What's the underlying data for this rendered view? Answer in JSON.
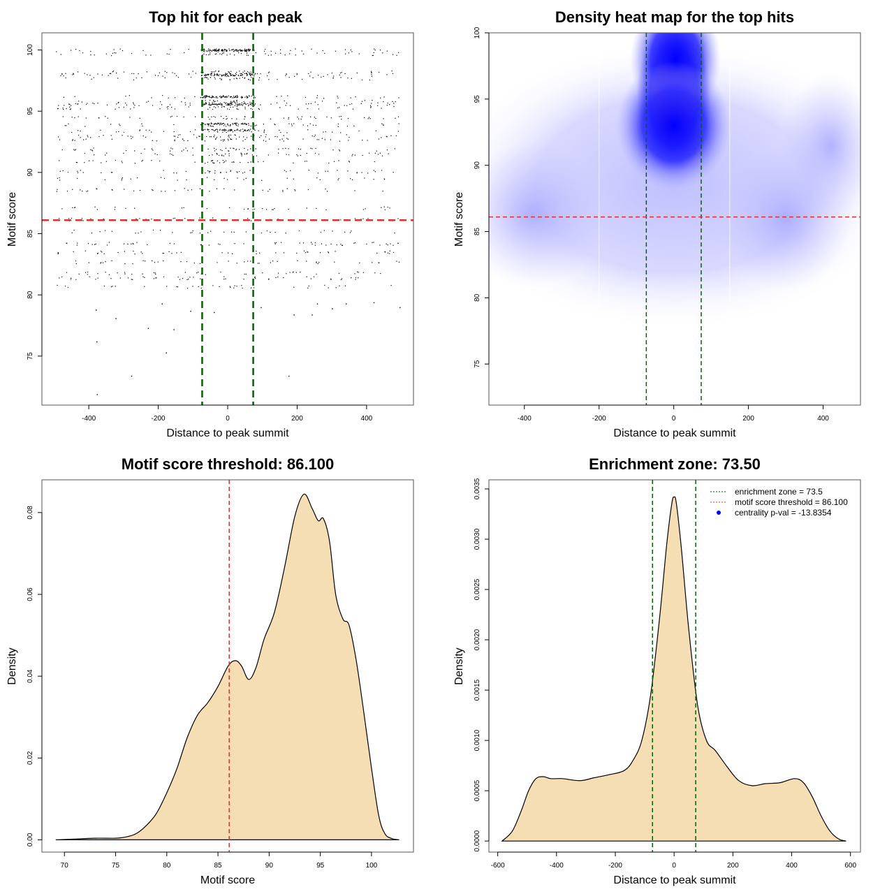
{
  "colors": {
    "threshold_line": "#e03030",
    "zone_line": "#006400",
    "density_fill": "#f5deb3",
    "heat_low": "#ffffff",
    "heat_mid": "#0000ff",
    "heat_high": "#ff0000",
    "legend_dot": "#0000ff"
  },
  "chart_data": [
    {
      "type": "scatter",
      "title": "Top hit for each peak",
      "xlabel": "Distance to peak summit",
      "ylabel": "Motif score",
      "xlim": [
        -535,
        535
      ],
      "ylim": [
        71,
        101.4
      ],
      "xticks": [
        -400,
        -200,
        0,
        200,
        400
      ],
      "xtick_labels": [
        "-400",
        "-200",
        "0",
        "200",
        "400"
      ],
      "yticks": [
        75,
        80,
        85,
        90,
        95,
        100
      ],
      "ytick_labels": [
        "75",
        "80",
        "85",
        "90",
        "95",
        "100"
      ],
      "vlines": [
        -73.5,
        73.5
      ],
      "hline": 86.1,
      "point_summary": "approx. 2000+ points; x uniform in [-500,500] with central enrichment in [-73.5,73.5]; y mostly 81-100 with score bands",
      "outlier_points": [
        {
          "x": -380,
          "y": 78.8
        },
        {
          "x": -323,
          "y": 78.1
        },
        {
          "x": -378,
          "y": 76.2
        },
        {
          "x": -230,
          "y": 77.3
        },
        {
          "x": -156,
          "y": 77.2
        },
        {
          "x": -178,
          "y": 75.3
        },
        {
          "x": -278,
          "y": 73.4
        },
        {
          "x": -377,
          "y": 71.9
        },
        {
          "x": 175,
          "y": 73.4
        },
        {
          "x": -108,
          "y": 78.7
        },
        {
          "x": -40,
          "y": 78.6
        },
        {
          "x": 72,
          "y": 77.5
        },
        {
          "x": 190,
          "y": 78.4
        },
        {
          "x": 242,
          "y": 78.4
        },
        {
          "x": 300,
          "y": 78.9
        },
        {
          "x": 495,
          "y": 79.0
        },
        {
          "x": 420,
          "y": 79.4
        },
        {
          "x": -190,
          "y": 79.3
        },
        {
          "x": 95,
          "y": 79.0
        },
        {
          "x": 340,
          "y": 79.3
        },
        {
          "x": 257,
          "y": 79.3
        }
      ],
      "score_bands": [
        100,
        99.7,
        98.2,
        98.0,
        97.7,
        96.2,
        95.8,
        95.6,
        95.3,
        94.5,
        93.9,
        93.4,
        93.0,
        92.7,
        91.9,
        91.5,
        90.9,
        90.1,
        89.5,
        88.6,
        87.1,
        86.2,
        85.2,
        84.2,
        83.5,
        82.7,
        81.8,
        81.4,
        80.7
      ]
    },
    {
      "type": "heatmap",
      "title": "Density heat map for the top hits",
      "xlabel": "Distance to peak summit",
      "ylabel": "Motif score",
      "xlim": [
        -495,
        500
      ],
      "ylim": [
        71.9,
        100
      ],
      "xticks": [
        -400,
        -200,
        0,
        200,
        400
      ],
      "xtick_labels": [
        "-400",
        "-200",
        "0",
        "200",
        "400"
      ],
      "yticks": [
        75,
        80,
        85,
        90,
        95,
        100
      ],
      "ytick_labels": [
        "75",
        "80",
        "85",
        "90",
        "95",
        "100"
      ],
      "vlines": [
        -73.5,
        73.5
      ],
      "hline": 86.1,
      "colorscale": [
        "white",
        "blue",
        "red"
      ],
      "hotspots": [
        {
          "x": 0,
          "y": 95.2,
          "intensity": 1.0,
          "sx": 45,
          "sy": 2.6
        },
        {
          "x": 5,
          "y": 98.0,
          "intensity": 0.55,
          "sx": 55,
          "sy": 2.2
        },
        {
          "x": 0,
          "y": 93.0,
          "intensity": 0.55,
          "sx": 70,
          "sy": 2.2
        },
        {
          "x": 420,
          "y": 91.5,
          "intensity": 0.22,
          "sx": 60,
          "sy": 2.5
        },
        {
          "x": -380,
          "y": 86.3,
          "intensity": 0.2,
          "sx": 90,
          "sy": 2.5
        },
        {
          "x": 300,
          "y": 86.0,
          "intensity": 0.17,
          "sx": 80,
          "sy": 2.5
        }
      ],
      "white_gridlines_x": [
        -200,
        150
      ]
    },
    {
      "type": "area",
      "title": "Motif score threshold: 86.100",
      "xlabel": "Motif score",
      "ylabel": "Density",
      "xlim": [
        67.8,
        104.1
      ],
      "ylim": [
        -0.003,
        0.088
      ],
      "xticks": [
        70,
        75,
        80,
        85,
        90,
        95,
        100
      ],
      "xtick_labels": [
        "70",
        "75",
        "80",
        "85",
        "90",
        "95",
        "100"
      ],
      "yticks": [
        0.0,
        0.02,
        0.04,
        0.06,
        0.08
      ],
      "ytick_labels": [
        "0.00",
        "0.02",
        "0.04",
        "0.06",
        "0.08"
      ],
      "vline": 86.1,
      "x": [
        69.2,
        71,
        73,
        75,
        76,
        77,
        78,
        79,
        80,
        81,
        82,
        83,
        84,
        85,
        86,
        86.7,
        87.3,
        88,
        88.7,
        89.5,
        90.5,
        91.5,
        92.5,
        93.4,
        94.2,
        94.8,
        95.3,
        95.9,
        96.5,
        97.2,
        97.8,
        98.5,
        99.2,
        100,
        100.7,
        101.3,
        102,
        102.7
      ],
      "y": [
        0.0,
        0.0002,
        0.0004,
        0.0004,
        0.0007,
        0.0015,
        0.0035,
        0.0065,
        0.0115,
        0.0175,
        0.025,
        0.0305,
        0.0335,
        0.0375,
        0.0425,
        0.0438,
        0.0425,
        0.0392,
        0.042,
        0.049,
        0.0555,
        0.0665,
        0.079,
        0.0845,
        0.081,
        0.078,
        0.0785,
        0.073,
        0.06,
        0.054,
        0.0525,
        0.044,
        0.032,
        0.0175,
        0.006,
        0.0015,
        0.0003,
        0.0
      ]
    },
    {
      "type": "area",
      "title": "Enrichment zone: 73.50",
      "xlabel": "Distance to peak summit",
      "ylabel": "Density",
      "xlim": [
        -630,
        634
      ],
      "ylim": [
        -0.00011,
        0.00359
      ],
      "xticks": [
        -600,
        -400,
        -200,
        0,
        200,
        400,
        600
      ],
      "xtick_labels": [
        "-600",
        "-400",
        "-200",
        "0",
        "200",
        "400",
        "600"
      ],
      "yticks": [
        0.0,
        0.0005,
        0.001,
        0.0015,
        0.002,
        0.0025,
        0.003,
        0.0035
      ],
      "ytick_labels": [
        "0.0000",
        "0.0005",
        "0.0010",
        "0.0015",
        "0.0020",
        "0.0025",
        "0.0030",
        "0.0035"
      ],
      "vlines": [
        -73.5,
        73.5
      ],
      "x": [
        -585,
        -550,
        -520,
        -495,
        -470,
        -445,
        -420,
        -380,
        -320,
        -270,
        -220,
        -170,
        -140,
        -110,
        -80,
        -50,
        -25,
        -8,
        0,
        8,
        25,
        50,
        80,
        110,
        140,
        180,
        220,
        265,
        310,
        360,
        410,
        440,
        470,
        500,
        530,
        560,
        585
      ],
      "y": [
        0.0,
        0.0001,
        0.0003,
        0.0005,
        0.00062,
        0.00064,
        0.00062,
        0.00062,
        0.0006,
        0.00063,
        0.00066,
        0.0007,
        0.0008,
        0.001,
        0.00145,
        0.0022,
        0.00295,
        0.00335,
        0.00342,
        0.00335,
        0.0029,
        0.0021,
        0.00135,
        0.001,
        0.0009,
        0.00074,
        0.0006,
        0.00055,
        0.00057,
        0.00058,
        0.00062,
        0.00058,
        0.00044,
        0.00025,
        0.0001,
        2e-05,
        0.0
      ],
      "legend": {
        "position": "top-right",
        "entries": [
          {
            "label": "enrichment zone = 73.5",
            "style": "dotted-line",
            "color": "#006400"
          },
          {
            "label": "motif score threshold = 86.100",
            "style": "dotted-line",
            "color": "#e03030"
          },
          {
            "label": "centrality p-val = -13.8354",
            "style": "dot",
            "color": "#0000ff"
          }
        ]
      }
    }
  ]
}
